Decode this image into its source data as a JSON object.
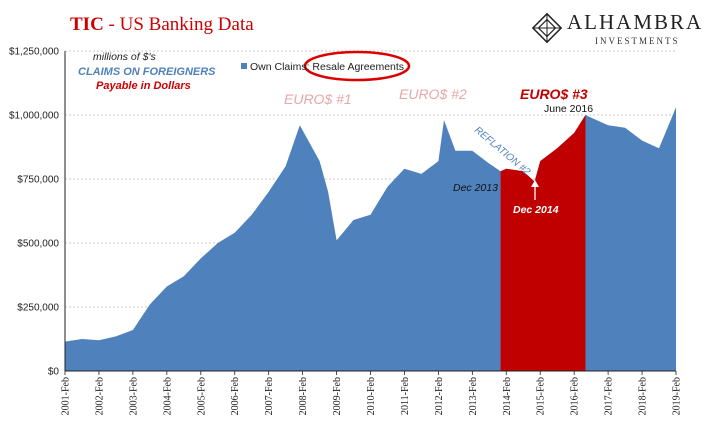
{
  "header": {
    "title_strong": "TIC",
    "title_rest": " - US Banking Data",
    "brand_name": "ALHAMBRA",
    "brand_sub": "INVESTMENTS"
  },
  "notes": {
    "units": "millions of $'s",
    "claims": "CLAIMS ON FOREIGNERS",
    "payable": "Payable in Dollars"
  },
  "colors": {
    "series": "#4f81bd",
    "highlight": "#c00000",
    "euro_faded": "#e6a7a7",
    "accent": "#cc0000"
  },
  "chart_data": {
    "type": "area",
    "series": [
      {
        "name": "Own Claims: Resale Agreements",
        "x": [
          "2001-02",
          "2001-08",
          "2002-02",
          "2002-08",
          "2003-02",
          "2003-08",
          "2004-02",
          "2004-08",
          "2005-02",
          "2005-08",
          "2006-02",
          "2006-08",
          "2007-02",
          "2007-08",
          "2008-01",
          "2008-04",
          "2008-08",
          "2008-11",
          "2009-02",
          "2009-08",
          "2010-02",
          "2010-08",
          "2011-02",
          "2011-08",
          "2012-02",
          "2012-04",
          "2012-08",
          "2013-02",
          "2013-08",
          "2013-12",
          "2014-02",
          "2014-08",
          "2014-12",
          "2015-02",
          "2015-08",
          "2016-02",
          "2016-06",
          "2016-08",
          "2017-02",
          "2017-08",
          "2018-02",
          "2018-08",
          "2019-02"
        ],
        "values": [
          115000,
          125000,
          120000,
          135000,
          160000,
          260000,
          330000,
          370000,
          440000,
          500000,
          540000,
          610000,
          700000,
          800000,
          960000,
          900000,
          820000,
          700000,
          510000,
          590000,
          610000,
          720000,
          790000,
          770000,
          820000,
          980000,
          860000,
          860000,
          810000,
          780000,
          790000,
          780000,
          740000,
          820000,
          870000,
          930000,
          1000000,
          990000,
          960000,
          950000,
          900000,
          870000,
          1030000
        ]
      }
    ],
    "highlight_range": [
      "2013-12",
      "2016-06"
    ],
    "xticks": [
      "2001-Feb",
      "2002-Feb",
      "2003-Feb",
      "2004-Feb",
      "2005-Feb",
      "2006-Feb",
      "2007-Feb",
      "2008-Feb",
      "2009-Feb",
      "2010-Feb",
      "2011-Feb",
      "2012-Feb",
      "2013-Feb",
      "2014-Feb",
      "2015-Feb",
      "2016-Feb",
      "2017-Feb",
      "2018-Feb",
      "2019-Feb"
    ],
    "yticks": [
      "$0",
      "$250,000",
      "$500,000",
      "$750,000",
      "$1,000,000",
      "$1,250,000"
    ],
    "ylim": [
      0,
      1250000
    ],
    "grid": "horizontal dashed",
    "legend": "top-left",
    "annotations": {
      "euro1": "EURO$ #1",
      "euro2": "EURO$ #2",
      "euro3": "EURO$ #3",
      "reflation": "REFLATION #2",
      "june2016": "June 2016",
      "dec2013": "Dec 2013",
      "dec2014": "Dec 2014"
    }
  }
}
